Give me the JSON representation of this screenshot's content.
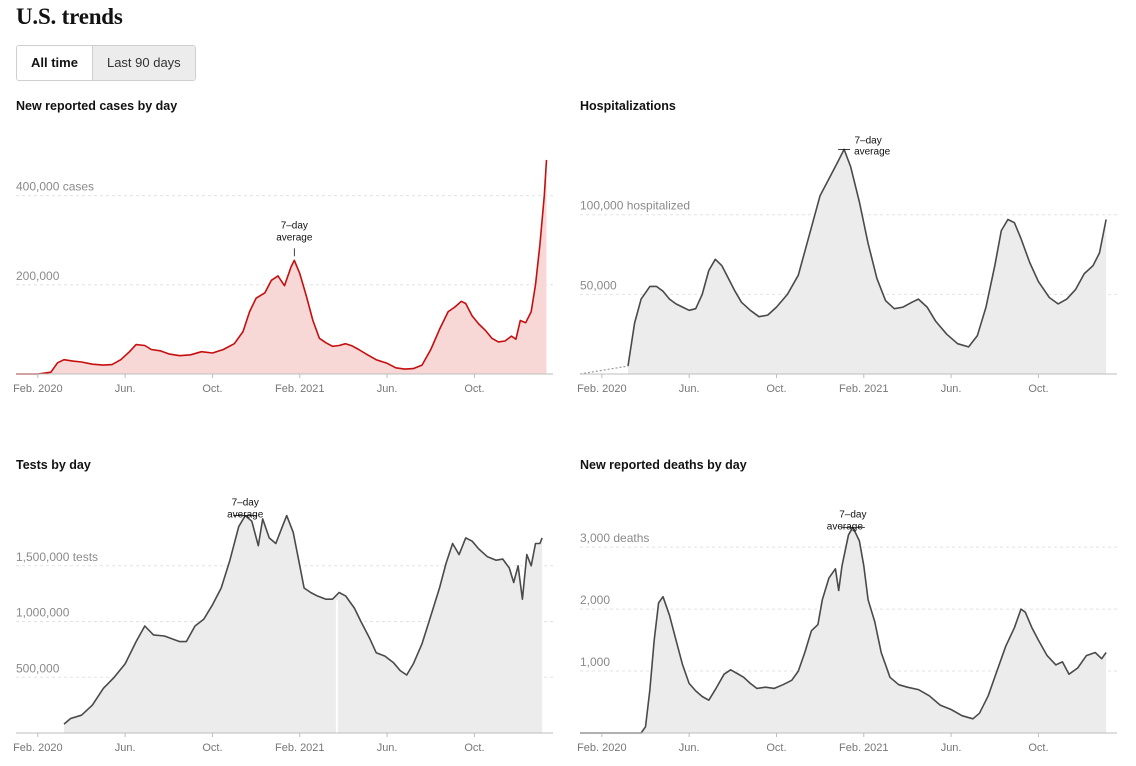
{
  "header": {
    "title": "U.S. trends"
  },
  "tabs": {
    "all_time": "All time",
    "last_90": "Last 90 days"
  },
  "colors": {
    "cases_line": "#c50f0f",
    "cases_fill": "#f8d7d7",
    "grey_line": "#4a4a4a",
    "grey_fill": "#ececec"
  },
  "chart_data": [
    {
      "id": "cases",
      "type": "area",
      "title": "New reported cases by day",
      "series_label": "7-day average",
      "annotation": {
        "line1": "7–day",
        "line2": "average"
      },
      "x_tick_labels": [
        "Feb. 2020",
        "Jun.",
        "Oct.",
        "Feb. 2021",
        "Jun.",
        "Oct."
      ],
      "x_tick_months": [
        1,
        5,
        9,
        13,
        17,
        21
      ],
      "y_ticks": [
        {
          "value": 400000,
          "label": "400,000 cases"
        },
        {
          "value": 200000,
          "label": "200,000"
        }
      ],
      "xlim": [
        0,
        24.6
      ],
      "ylim": [
        0,
        500000
      ],
      "points": [
        [
          0,
          0
        ],
        [
          1,
          0
        ],
        [
          1.6,
          4000
        ],
        [
          1.9,
          25000
        ],
        [
          2.2,
          32000
        ],
        [
          2.6,
          29000
        ],
        [
          3,
          27000
        ],
        [
          3.5,
          22000
        ],
        [
          4,
          20000
        ],
        [
          4.4,
          21000
        ],
        [
          4.8,
          32000
        ],
        [
          5.2,
          50000
        ],
        [
          5.5,
          66000
        ],
        [
          5.9,
          64000
        ],
        [
          6.2,
          55000
        ],
        [
          6.6,
          52000
        ],
        [
          7,
          45000
        ],
        [
          7.5,
          41000
        ],
        [
          8,
          43000
        ],
        [
          8.5,
          50000
        ],
        [
          9,
          47000
        ],
        [
          9.5,
          55000
        ],
        [
          10,
          68000
        ],
        [
          10.4,
          95000
        ],
        [
          10.7,
          140000
        ],
        [
          11,
          170000
        ],
        [
          11.4,
          182000
        ],
        [
          11.7,
          210000
        ],
        [
          12,
          220000
        ],
        [
          12.3,
          198000
        ],
        [
          12.6,
          240000
        ],
        [
          12.75,
          255000
        ],
        [
          13,
          225000
        ],
        [
          13.3,
          175000
        ],
        [
          13.6,
          120000
        ],
        [
          13.9,
          80000
        ],
        [
          14.2,
          70000
        ],
        [
          14.5,
          62000
        ],
        [
          14.8,
          64000
        ],
        [
          15.1,
          68000
        ],
        [
          15.4,
          63000
        ],
        [
          15.7,
          55000
        ],
        [
          16.1,
          43000
        ],
        [
          16.5,
          32000
        ],
        [
          17,
          24000
        ],
        [
          17.4,
          14000
        ],
        [
          17.8,
          11000
        ],
        [
          18.2,
          12000
        ],
        [
          18.6,
          20000
        ],
        [
          19,
          55000
        ],
        [
          19.4,
          100000
        ],
        [
          19.8,
          140000
        ],
        [
          20.1,
          150000
        ],
        [
          20.4,
          163000
        ],
        [
          20.6,
          158000
        ],
        [
          20.9,
          130000
        ],
        [
          21.2,
          112000
        ],
        [
          21.5,
          98000
        ],
        [
          21.8,
          80000
        ],
        [
          22.1,
          72000
        ],
        [
          22.4,
          74000
        ],
        [
          22.7,
          85000
        ],
        [
          22.9,
          78000
        ],
        [
          23.1,
          120000
        ],
        [
          23.35,
          115000
        ],
        [
          23.6,
          140000
        ],
        [
          23.8,
          200000
        ],
        [
          24,
          290000
        ],
        [
          24.2,
          400000
        ],
        [
          24.3,
          480000
        ]
      ]
    },
    {
      "id": "hospitalizations",
      "type": "area",
      "title": "Hospitalizations",
      "series_label": "7-day average",
      "annotation": {
        "line1": "7–day",
        "line2": "average"
      },
      "x_tick_labels": [
        "Feb. 2020",
        "Jun.",
        "Oct.",
        "Feb. 2021",
        "Jun.",
        "Oct."
      ],
      "x_tick_months": [
        1,
        5,
        9,
        13,
        17,
        21
      ],
      "y_ticks": [
        {
          "value": 100000,
          "label": "100,000 hospitalized"
        },
        {
          "value": 50000,
          "label": "50,000"
        }
      ],
      "xlim": [
        0,
        24.6
      ],
      "ylim": [
        0,
        140000
      ],
      "dotted_start": [
        [
          0,
          0
        ],
        [
          2.2,
          5000
        ]
      ],
      "points": [
        [
          2.2,
          5000
        ],
        [
          2.5,
          32000
        ],
        [
          2.8,
          47000
        ],
        [
          3.2,
          55000
        ],
        [
          3.5,
          55000
        ],
        [
          3.8,
          52000
        ],
        [
          4.1,
          47000
        ],
        [
          4.4,
          44000
        ],
        [
          4.7,
          42000
        ],
        [
          5,
          40000
        ],
        [
          5.3,
          41000
        ],
        [
          5.6,
          50000
        ],
        [
          5.9,
          65000
        ],
        [
          6.2,
          72000
        ],
        [
          6.5,
          68000
        ],
        [
          6.8,
          60000
        ],
        [
          7.1,
          52000
        ],
        [
          7.4,
          45000
        ],
        [
          7.8,
          40000
        ],
        [
          8.2,
          36000
        ],
        [
          8.6,
          37000
        ],
        [
          9,
          42000
        ],
        [
          9.5,
          50000
        ],
        [
          10,
          62000
        ],
        [
          10.5,
          87000
        ],
        [
          11,
          112000
        ],
        [
          11.5,
          125000
        ],
        [
          11.8,
          133000
        ],
        [
          12.1,
          141000
        ],
        [
          12.4,
          130000
        ],
        [
          12.8,
          108000
        ],
        [
          13.2,
          82000
        ],
        [
          13.6,
          60000
        ],
        [
          14,
          46000
        ],
        [
          14.4,
          41000
        ],
        [
          14.8,
          42000
        ],
        [
          15.2,
          45000
        ],
        [
          15.5,
          47000
        ],
        [
          15.9,
          42000
        ],
        [
          16.3,
          33000
        ],
        [
          16.8,
          25000
        ],
        [
          17.3,
          19000
        ],
        [
          17.8,
          17000
        ],
        [
          18.2,
          24000
        ],
        [
          18.6,
          42000
        ],
        [
          19,
          68000
        ],
        [
          19.3,
          90000
        ],
        [
          19.6,
          97000
        ],
        [
          19.9,
          95000
        ],
        [
          20.2,
          85000
        ],
        [
          20.6,
          70000
        ],
        [
          21,
          58000
        ],
        [
          21.5,
          48000
        ],
        [
          21.9,
          44000
        ],
        [
          22.3,
          47000
        ],
        [
          22.7,
          53000
        ],
        [
          23.1,
          63000
        ],
        [
          23.5,
          68000
        ],
        [
          23.8,
          76000
        ],
        [
          24.1,
          97000
        ]
      ]
    },
    {
      "id": "tests",
      "type": "area",
      "title": "Tests by day",
      "series_label": "7-day average",
      "annotation": {
        "line1": "7–day",
        "line2": "average"
      },
      "x_tick_labels": [
        "Feb. 2020",
        "Jun.",
        "Oct.",
        "Feb. 2021",
        "Jun.",
        "Oct."
      ],
      "x_tick_months": [
        1,
        5,
        9,
        13,
        17,
        21
      ],
      "y_ticks": [
        {
          "value": 1500000,
          "label": "1,500,000 tests"
        },
        {
          "value": 1000000,
          "label": "1,000,000"
        },
        {
          "value": 500000,
          "label": "500,000"
        }
      ],
      "xlim": [
        0,
        24.6
      ],
      "ylim": [
        0,
        2000000
      ],
      "gap_at": 14.7,
      "points": [
        [
          2.2,
          80000
        ],
        [
          2.5,
          130000
        ],
        [
          3,
          160000
        ],
        [
          3.5,
          250000
        ],
        [
          4,
          400000
        ],
        [
          4.5,
          500000
        ],
        [
          5,
          620000
        ],
        [
          5.5,
          820000
        ],
        [
          5.9,
          960000
        ],
        [
          6.3,
          880000
        ],
        [
          6.8,
          870000
        ],
        [
          7.2,
          840000
        ],
        [
          7.5,
          820000
        ],
        [
          7.8,
          820000
        ],
        [
          8.2,
          960000
        ],
        [
          8.6,
          1020000
        ],
        [
          9,
          1150000
        ],
        [
          9.4,
          1300000
        ],
        [
          9.8,
          1550000
        ],
        [
          10.2,
          1850000
        ],
        [
          10.5,
          1950000
        ],
        [
          10.8,
          1900000
        ],
        [
          11.1,
          1680000
        ],
        [
          11.3,
          1920000
        ],
        [
          11.6,
          1750000
        ],
        [
          11.9,
          1700000
        ],
        [
          12.2,
          1850000
        ],
        [
          12.4,
          1950000
        ],
        [
          12.7,
          1800000
        ],
        [
          13,
          1500000
        ],
        [
          13.2,
          1300000
        ],
        [
          13.5,
          1260000
        ],
        [
          13.8,
          1230000
        ],
        [
          14.2,
          1200000
        ],
        [
          14.5,
          1200000
        ],
        [
          14.8,
          1260000
        ],
        [
          15.1,
          1230000
        ],
        [
          15.5,
          1120000
        ],
        [
          15.8,
          1000000
        ],
        [
          16.2,
          850000
        ],
        [
          16.5,
          720000
        ],
        [
          16.9,
          690000
        ],
        [
          17.3,
          630000
        ],
        [
          17.6,
          560000
        ],
        [
          17.9,
          520000
        ],
        [
          18.2,
          620000
        ],
        [
          18.6,
          800000
        ],
        [
          19,
          1050000
        ],
        [
          19.4,
          1300000
        ],
        [
          19.7,
          1520000
        ],
        [
          20,
          1700000
        ],
        [
          20.3,
          1600000
        ],
        [
          20.6,
          1750000
        ],
        [
          20.9,
          1720000
        ],
        [
          21.2,
          1650000
        ],
        [
          21.6,
          1580000
        ],
        [
          22,
          1550000
        ],
        [
          22.3,
          1560000
        ],
        [
          22.6,
          1480000
        ],
        [
          22.8,
          1350000
        ],
        [
          23,
          1500000
        ],
        [
          23.2,
          1200000
        ],
        [
          23.4,
          1600000
        ],
        [
          23.6,
          1500000
        ],
        [
          23.8,
          1700000
        ],
        [
          24,
          1700000
        ],
        [
          24.1,
          1750000
        ]
      ]
    },
    {
      "id": "deaths",
      "type": "area",
      "title": "New reported deaths by day",
      "series_label": "7-day average",
      "annotation": {
        "line1": "7–day",
        "line2": "average"
      },
      "x_tick_labels": [
        "Feb. 2020",
        "Jun.",
        "Oct.",
        "Feb. 2021",
        "Jun.",
        "Oct."
      ],
      "x_tick_months": [
        1,
        5,
        9,
        13,
        17,
        21
      ],
      "y_ticks": [
        {
          "value": 3000,
          "label": "3,000 deaths"
        },
        {
          "value": 2000,
          "label": "2,000"
        },
        {
          "value": 1000,
          "label": "1,000"
        }
      ],
      "xlim": [
        0,
        24.6
      ],
      "ylim": [
        0,
        3600
      ],
      "points": [
        [
          0,
          0
        ],
        [
          2.8,
          0
        ],
        [
          3,
          100
        ],
        [
          3.2,
          700
        ],
        [
          3.4,
          1500
        ],
        [
          3.6,
          2100
        ],
        [
          3.8,
          2200
        ],
        [
          4.1,
          1900
        ],
        [
          4.4,
          1500
        ],
        [
          4.7,
          1100
        ],
        [
          5,
          800
        ],
        [
          5.3,
          680
        ],
        [
          5.6,
          590
        ],
        [
          5.9,
          530
        ],
        [
          6.2,
          700
        ],
        [
          6.6,
          950
        ],
        [
          6.9,
          1020
        ],
        [
          7.2,
          960
        ],
        [
          7.5,
          900
        ],
        [
          7.8,
          800
        ],
        [
          8.1,
          720
        ],
        [
          8.5,
          740
        ],
        [
          8.9,
          720
        ],
        [
          9.3,
          780
        ],
        [
          9.7,
          850
        ],
        [
          10,
          1000
        ],
        [
          10.3,
          1300
        ],
        [
          10.6,
          1650
        ],
        [
          10.9,
          1750
        ],
        [
          11.1,
          2150
        ],
        [
          11.4,
          2500
        ],
        [
          11.7,
          2650
        ],
        [
          11.85,
          2300
        ],
        [
          12,
          2700
        ],
        [
          12.3,
          3200
        ],
        [
          12.5,
          3320
        ],
        [
          12.8,
          3100
        ],
        [
          13,
          2700
        ],
        [
          13.2,
          2150
        ],
        [
          13.5,
          1800
        ],
        [
          13.8,
          1300
        ],
        [
          14.2,
          900
        ],
        [
          14.6,
          780
        ],
        [
          15,
          740
        ],
        [
          15.5,
          700
        ],
        [
          16,
          600
        ],
        [
          16.5,
          450
        ],
        [
          17,
          380
        ],
        [
          17.5,
          280
        ],
        [
          18,
          230
        ],
        [
          18.3,
          320
        ],
        [
          18.7,
          600
        ],
        [
          19.1,
          1000
        ],
        [
          19.5,
          1400
        ],
        [
          19.9,
          1700
        ],
        [
          20.2,
          2000
        ],
        [
          20.4,
          1950
        ],
        [
          20.7,
          1700
        ],
        [
          21,
          1500
        ],
        [
          21.4,
          1250
        ],
        [
          21.8,
          1100
        ],
        [
          22.1,
          1150
        ],
        [
          22.4,
          950
        ],
        [
          22.8,
          1050
        ],
        [
          23.2,
          1250
        ],
        [
          23.6,
          1300
        ],
        [
          23.9,
          1200
        ],
        [
          24.1,
          1300
        ]
      ]
    }
  ]
}
